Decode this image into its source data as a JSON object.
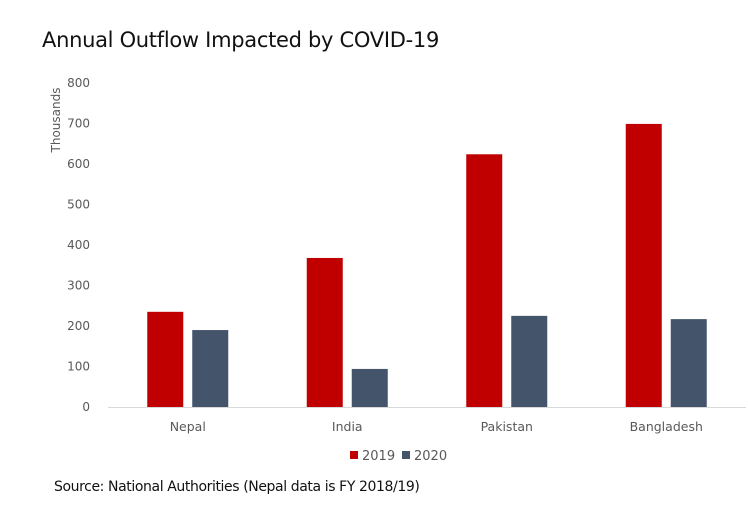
{
  "chart_data": {
    "type": "bar",
    "title": "Annual Outflow Impacted by COVID-19",
    "xlabel": "",
    "ylabel": "Thousands",
    "ylim": [
      0,
      800
    ],
    "yticks": [
      0,
      100,
      200,
      300,
      400,
      500,
      600,
      700,
      800
    ],
    "ytick_labels": [
      "0",
      "100",
      "200",
      "300",
      "400",
      "500",
      "600",
      "700",
      "800"
    ],
    "grid": false,
    "categories": [
      "Nepal",
      "India",
      "Pakistan",
      "Bangladesh"
    ],
    "series": [
      {
        "name": "2019",
        "color": "#C00000",
        "values": [
          235,
          368,
          624,
          699
        ]
      },
      {
        "name": "2020",
        "color": "#44546A",
        "values": [
          190,
          94,
          225,
          217
        ]
      }
    ],
    "legend": {
      "placement": "bottom",
      "entries": [
        "2019",
        "2020"
      ]
    },
    "source": "Source: National Authorities (Nepal data is FY 2018/19)"
  }
}
